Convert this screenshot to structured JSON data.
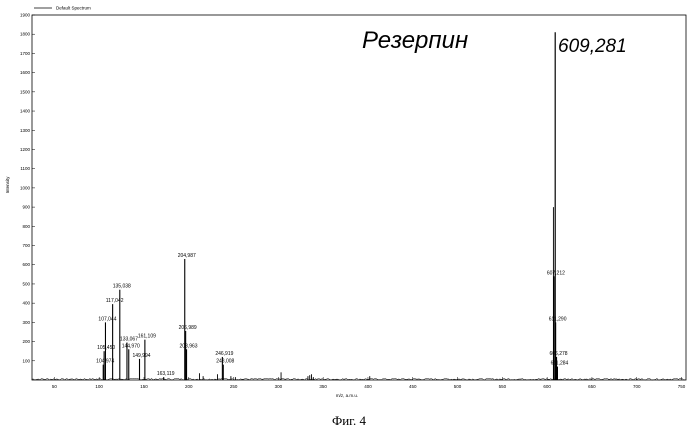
{
  "chart_data": {
    "type": "line",
    "legend": "Default Spectrum",
    "title": "Резерпин",
    "main_peak_label": "609,281",
    "xlabel": "m/z, a.m.u.",
    "ylabel": "Intensity",
    "xlim": [
      25,
      755
    ],
    "ylim": [
      0,
      1900
    ],
    "xticks": [
      50,
      100,
      150,
      200,
      250,
      300,
      350,
      400,
      450,
      500,
      550,
      600,
      650,
      700,
      750
    ],
    "yticks": [
      100,
      200,
      300,
      400,
      500,
      600,
      700,
      800,
      900,
      1000,
      1100,
      1200,
      1300,
      1400,
      1500,
      1600,
      1700,
      1800,
      1900
    ],
    "peaks": [
      {
        "mz": 104.5,
        "intensity": 80,
        "label": "104,974"
      },
      {
        "mz": 105.5,
        "intensity": 150,
        "label": "105,450"
      },
      {
        "mz": 107.0,
        "intensity": 300,
        "label": "107,044"
      },
      {
        "mz": 115.0,
        "intensity": 395,
        "label": "117,042"
      },
      {
        "mz": 123.0,
        "intensity": 470,
        "label": "135,038"
      },
      {
        "mz": 131.0,
        "intensity": 195,
        "label": "133,067"
      },
      {
        "mz": 133.0,
        "intensity": 160,
        "label": "144,970"
      },
      {
        "mz": 145.0,
        "intensity": 110,
        "label": "149,994"
      },
      {
        "mz": 151.0,
        "intensity": 210,
        "label": "161,109"
      },
      {
        "mz": 172.0,
        "intensity": 15,
        "label": "163,119"
      },
      {
        "mz": 195.5,
        "intensity": 630,
        "label": "204,987"
      },
      {
        "mz": 196.5,
        "intensity": 255,
        "label": "206,989"
      },
      {
        "mz": 197.5,
        "intensity": 160,
        "label": "208,963"
      },
      {
        "mz": 237.5,
        "intensity": 120,
        "label": "246,919"
      },
      {
        "mz": 238.5,
        "intensity": 80,
        "label": "248,008"
      },
      {
        "mz": 609.0,
        "intensity": 1810,
        "label": "609,281"
      },
      {
        "mz": 607.5,
        "intensity": 540,
        "label": "607,212"
      },
      {
        "mz": 609.5,
        "intensity": 300,
        "label": "611,290"
      },
      {
        "mz": 610.5,
        "intensity": 120,
        "label": "606,278"
      },
      {
        "mz": 611.5,
        "intensity": 70,
        "label": "611,284"
      }
    ],
    "minor_peaks": [
      {
        "mz": 212.0,
        "intensity": 35
      },
      {
        "mz": 216.0,
        "intensity": 20
      },
      {
        "mz": 232.0,
        "intensity": 30
      },
      {
        "mz": 247.0,
        "intensity": 20
      },
      {
        "mz": 252.0,
        "intensity": 15
      },
      {
        "mz": 303.0,
        "intensity": 40
      },
      {
        "mz": 333.0,
        "intensity": 20
      },
      {
        "mz": 335.0,
        "intensity": 25
      },
      {
        "mz": 337.0,
        "intensity": 30
      },
      {
        "mz": 339.0,
        "intensity": 15
      },
      {
        "mz": 402.0,
        "intensity": 20
      },
      {
        "mz": 607.0,
        "intensity": 900
      }
    ],
    "grid": false
  },
  "caption": "Фиг. 4"
}
